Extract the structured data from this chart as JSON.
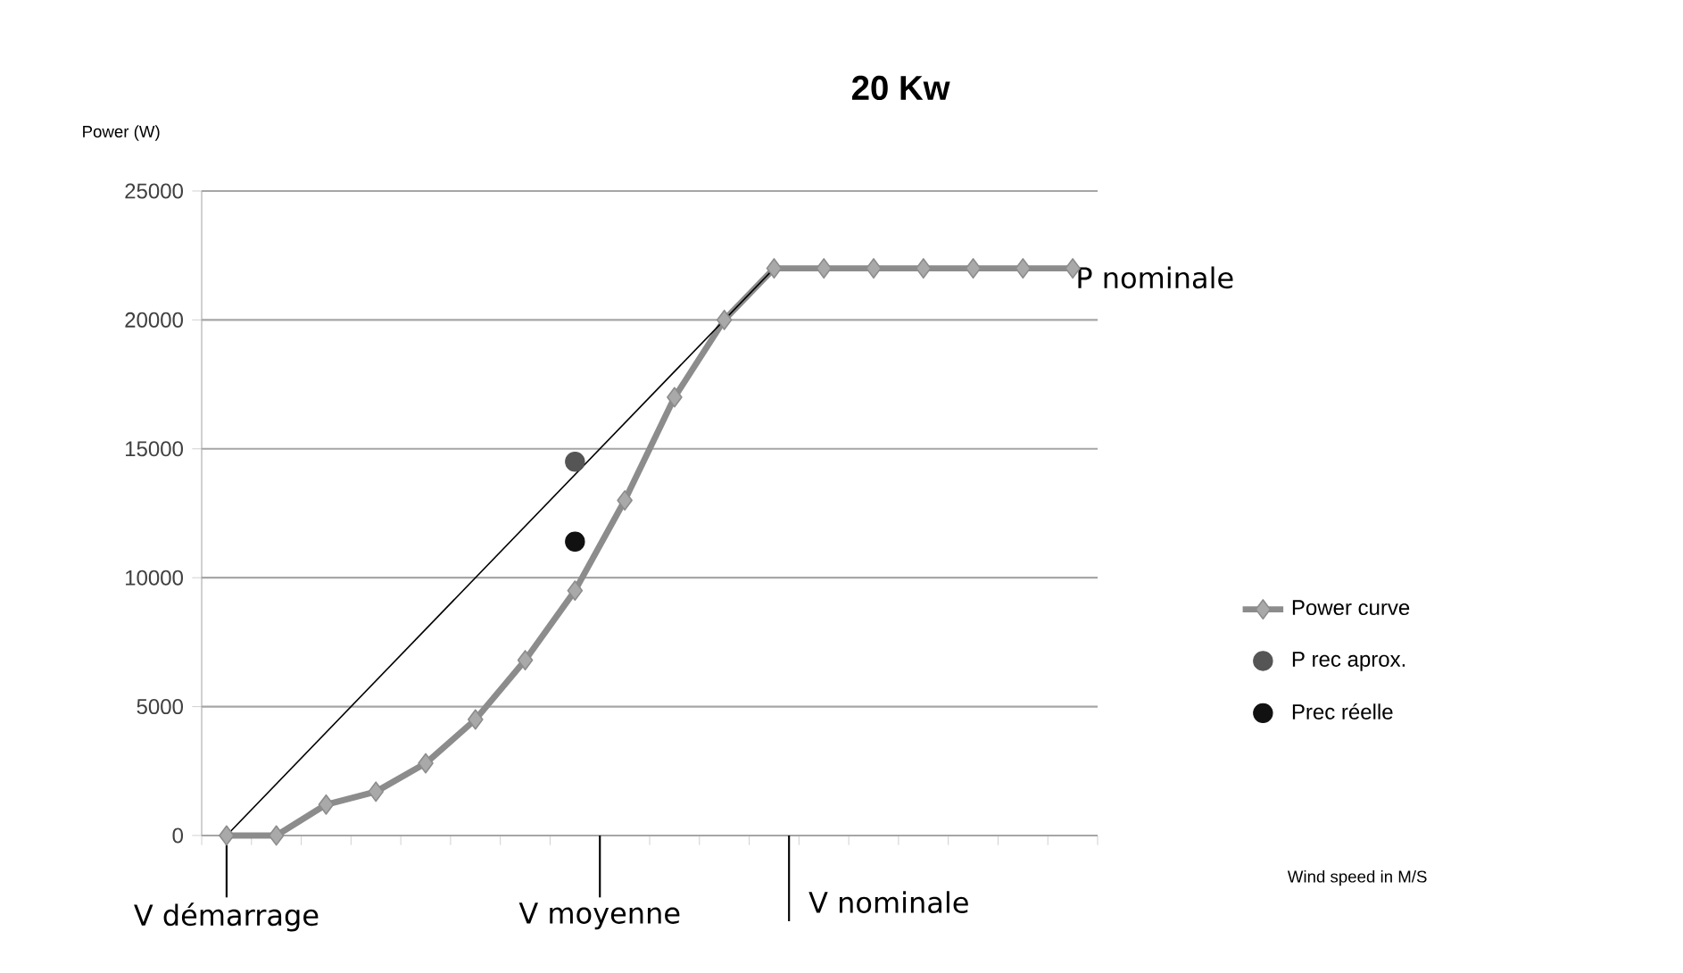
{
  "chart_data": {
    "type": "line",
    "title": "20 Kw",
    "ylabel": "Power (W)",
    "categories": [
      null,
      null,
      null,
      null,
      null,
      null,
      null,
      null,
      null,
      null,
      null,
      null,
      null,
      null,
      null,
      null,
      null,
      null
    ],
    "series": [
      {
        "name": "Power curve",
        "color": "#8c8c8c",
        "marker": "diamond",
        "values": [
          0,
          0,
          1200,
          1700,
          2800,
          4500,
          6800,
          9500,
          13000,
          17000,
          20000,
          22000,
          22000,
          22000,
          22000,
          22000,
          22000,
          22000
        ]
      },
      {
        "type": "line",
        "color": "#000000",
        "marker": "none",
        "values": [
          0,
          null,
          null,
          null,
          null,
          null,
          null,
          null,
          null,
          null,
          null,
          22000,
          null,
          null,
          null,
          null,
          null,
          null
        ]
      },
      {
        "name": "P rec aprox.",
        "type": "scatter",
        "color": "#555555",
        "marker": "circle",
        "values": [
          null,
          null,
          null,
          null,
          null,
          null,
          null,
          14500,
          null,
          null,
          null,
          null,
          null,
          null,
          null,
          null,
          null,
          null
        ]
      },
      {
        "name": "Prec réelle",
        "type": "scatter",
        "color": "#111111",
        "marker": "circle",
        "values": [
          null,
          null,
          null,
          null,
          null,
          null,
          null,
          11400,
          null,
          null,
          null,
          null,
          null,
          null,
          null,
          null,
          null,
          null
        ]
      }
    ],
    "ylim": [
      0,
      25000
    ],
    "yticks": [
      0,
      5000,
      10000,
      15000,
      20000,
      25000
    ],
    "grid": "y",
    "legend": "right",
    "annotations": [
      "P nominale",
      "V démarrage",
      "V moyenne",
      "V nominale",
      "Wind speed in M/S"
    ]
  }
}
